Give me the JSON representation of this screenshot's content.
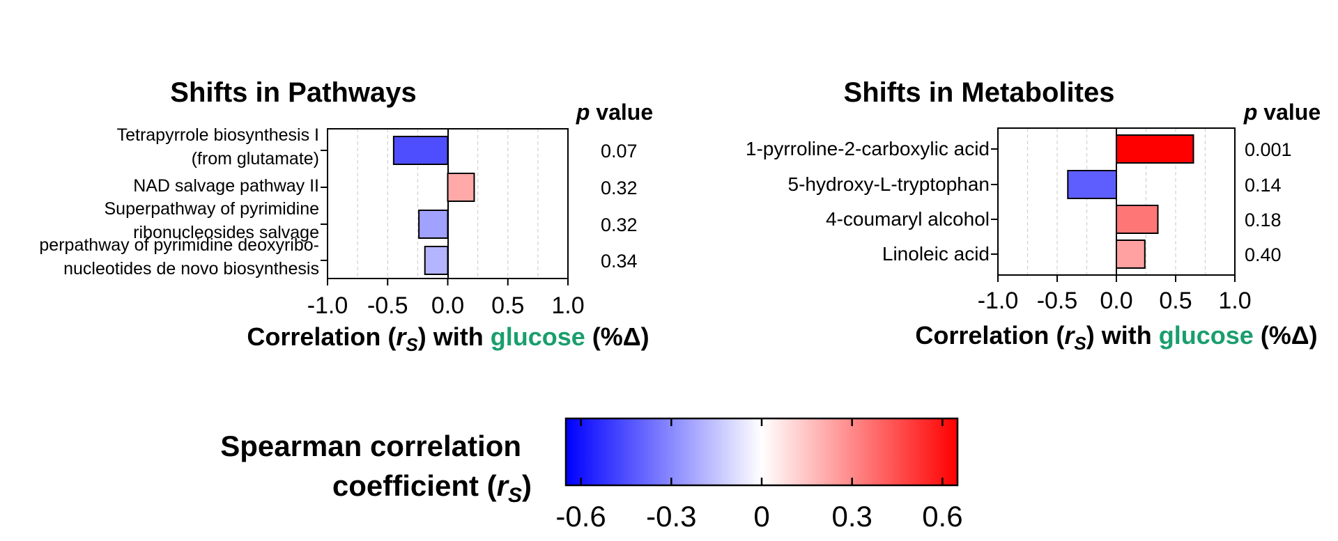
{
  "chart_data": [
    {
      "type": "bar",
      "orientation": "horizontal",
      "title": "Shifts in Pathways",
      "pvalue_header": {
        "p": "p",
        "rest": " value"
      },
      "categories": [
        [
          "Tetrapyrrole biosynthesis I",
          "(from glutamate)"
        ],
        [
          "NAD salvage pathway II"
        ],
        [
          "Superpathway of pyrimidine",
          "ribonucleosides salvage"
        ],
        [
          "perpathway of pyrimidine deoxyribo-",
          "nucleotides de novo biosynthesis"
        ]
      ],
      "values": [
        -0.45,
        0.22,
        -0.24,
        -0.19
      ],
      "pvalues": [
        "0.07",
        "0.32",
        "0.32",
        "0.34"
      ],
      "xlim": [
        -1.0,
        1.0
      ],
      "xticks": [
        "-1.0",
        "-0.5",
        "0.0",
        "0.5",
        "1.0"
      ],
      "xlabel": {
        "prefix": "Correlation (",
        "r": "r",
        "sub": "S",
        "mid": ") with ",
        "highlight": "glucose",
        "suffix": " (%Δ)"
      }
    },
    {
      "type": "bar",
      "orientation": "horizontal",
      "title": "Shifts in Metabolites",
      "pvalue_header": {
        "p": "p",
        "rest": " value"
      },
      "categories": [
        [
          "1-pyrroline-2-carboxylic acid"
        ],
        [
          "5-hydroxy-L-tryptophan"
        ],
        [
          "4-coumaryl alcohol"
        ],
        [
          "Linoleic acid"
        ]
      ],
      "values": [
        0.65,
        -0.41,
        0.35,
        0.24
      ],
      "pvalues": [
        "0.001",
        "0.14",
        "0.18",
        "0.40"
      ],
      "xlim": [
        -1.0,
        1.0
      ],
      "xticks": [
        "-1.0",
        "-0.5",
        "0.0",
        "0.5",
        "1.0"
      ],
      "xlabel": {
        "prefix": "Correlation (",
        "r": "r",
        "sub": "S",
        "mid": ") with ",
        "highlight": "glucose",
        "suffix": " (%Δ)"
      }
    }
  ],
  "colorbar": {
    "label_line1": "Spearman correlation",
    "label_line2": "coefficient (",
    "label_r": "r",
    "label_sub": "S",
    "label_close": ")",
    "ticks": [
      "-0.6",
      "-0.3",
      "0",
      "0.3",
      "0.6"
    ],
    "tick_values": [
      -0.6,
      -0.3,
      0,
      0.3,
      0.6
    ],
    "range": [
      -0.65,
      0.65
    ]
  },
  "colors": {
    "negative": "#0000ff",
    "positive": "#ff0000",
    "neutral": "#ffffff",
    "highlight": "#1a9e6e",
    "grid": "#d0d0d0"
  }
}
